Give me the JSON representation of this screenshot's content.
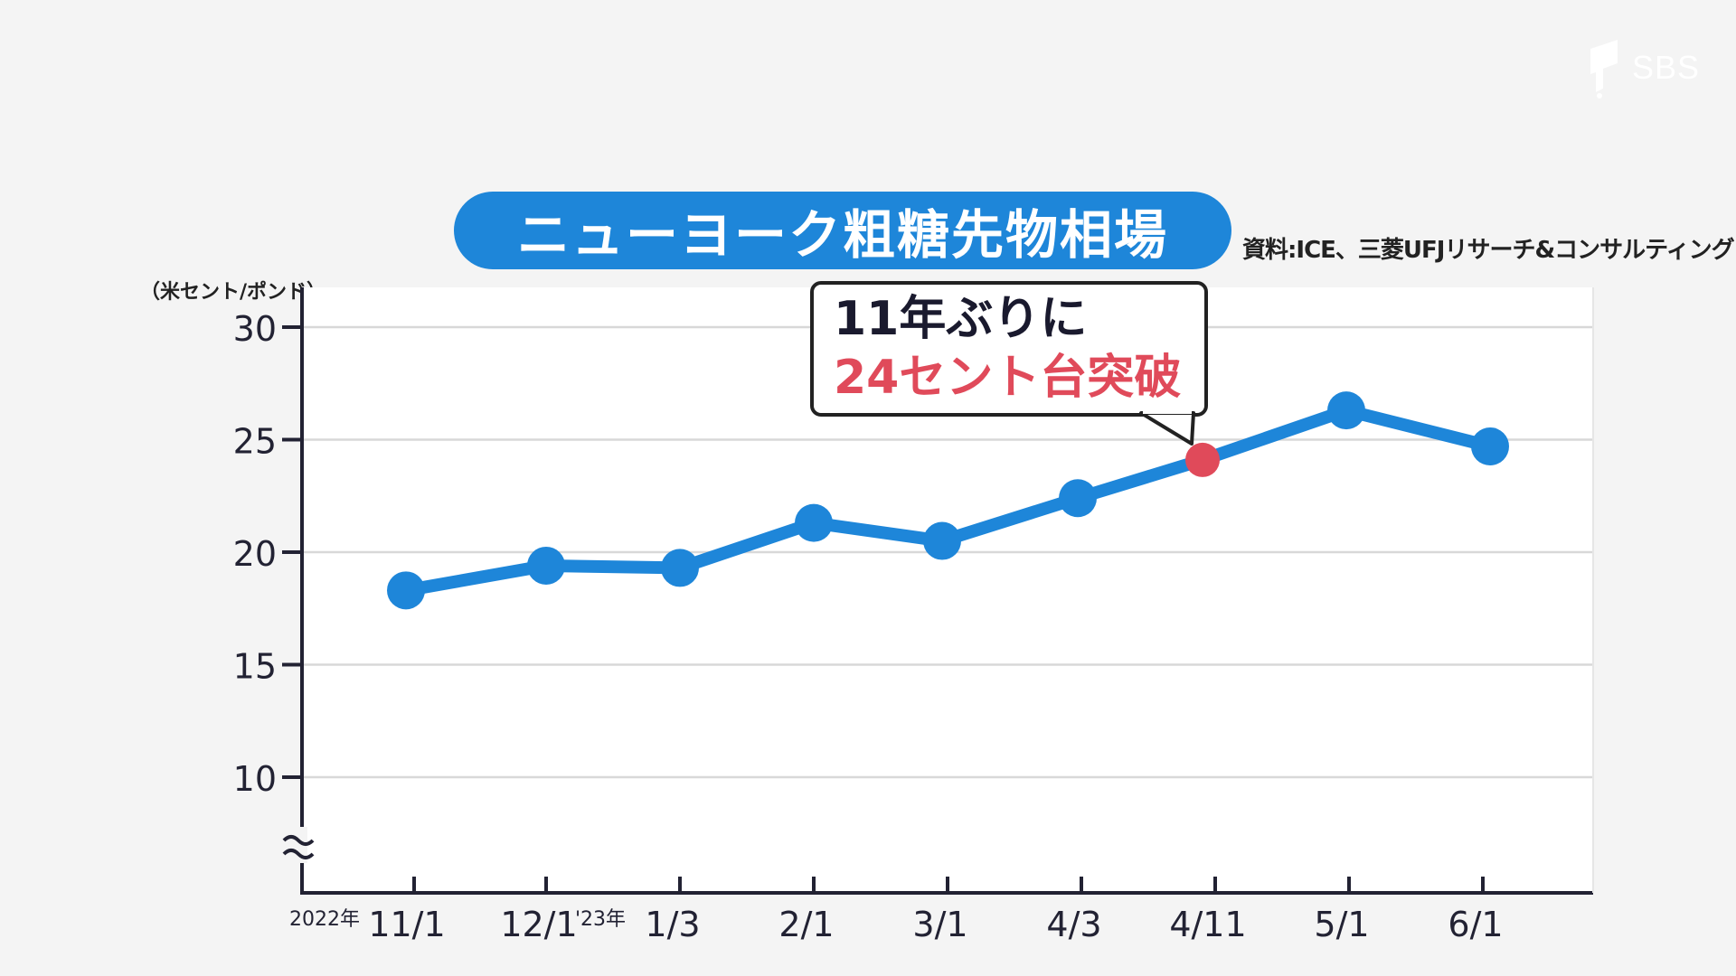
{
  "logo": {
    "text": "SBS"
  },
  "title": "ニューヨーク粗糖先物相場",
  "source": "資料:ICE、三菱UFJリサーチ&コンサルティング",
  "unit_label": "（米セント/ポンド）",
  "callout": {
    "line1": "11年ぶりに",
    "line2": "24セント台突破"
  },
  "colors": {
    "line": "#1e86d9",
    "highlight": "#e04a5a",
    "axis": "#222233",
    "grid": "#d8d8d8",
    "callout_text": "#1a1a2e"
  },
  "chart_data": {
    "type": "line",
    "title": "ニューヨーク粗糖先物相場",
    "ylabel": "（米セント/ポンド）",
    "xlabel": "",
    "categories": [
      "11/1",
      "12/1",
      "1/3",
      "2/1",
      "3/1",
      "4/3",
      "4/11",
      "5/1",
      "6/1"
    ],
    "year_labels": [
      {
        "category": "11/1",
        "text": "2022年"
      },
      {
        "category": "1/3",
        "text": "'23年"
      }
    ],
    "values": [
      18.3,
      19.4,
      19.3,
      21.3,
      20.5,
      22.4,
      24.1,
      26.3,
      24.7
    ],
    "highlight_category": "4/11",
    "ylim": [
      5,
      31
    ],
    "yticks": [
      10,
      15,
      20,
      25,
      30
    ],
    "axis_break": true,
    "grid": true
  }
}
